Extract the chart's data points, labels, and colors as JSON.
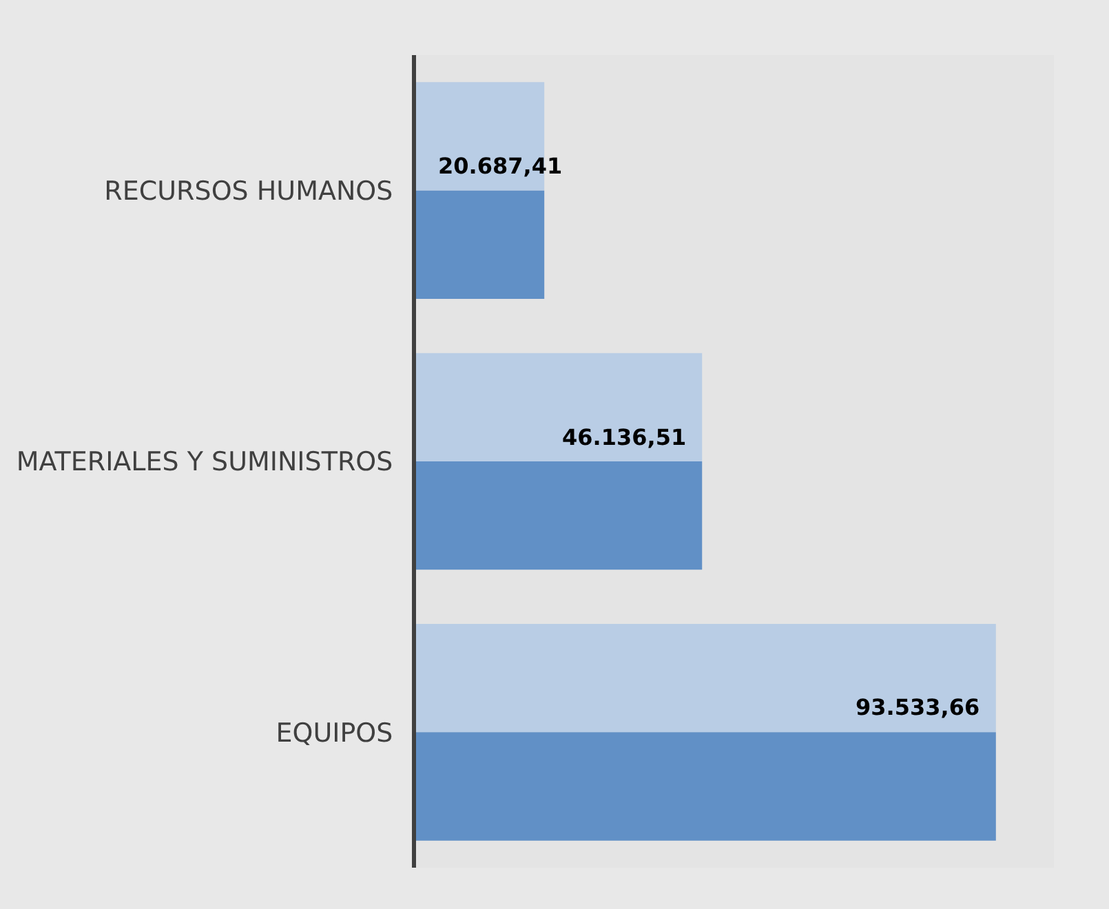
{
  "chart_data": {
    "type": "bar",
    "orientation": "horizontal",
    "categories": [
      "RECURSOS HUMANOS",
      "MATERIALES Y SUMINISTROS",
      "EQUIPOS"
    ],
    "series": [
      {
        "color": "#b9cde5",
        "values": [
          20687.41,
          46136.51,
          93533.66
        ],
        "value_labels": [
          "20.687,41",
          "46.136,51",
          "93.533,66"
        ]
      },
      {
        "color": "#6190c6",
        "values": [
          20687.41,
          46136.51,
          93533.66
        ]
      }
    ],
    "grid": false,
    "tick_labels": "y"
  }
}
